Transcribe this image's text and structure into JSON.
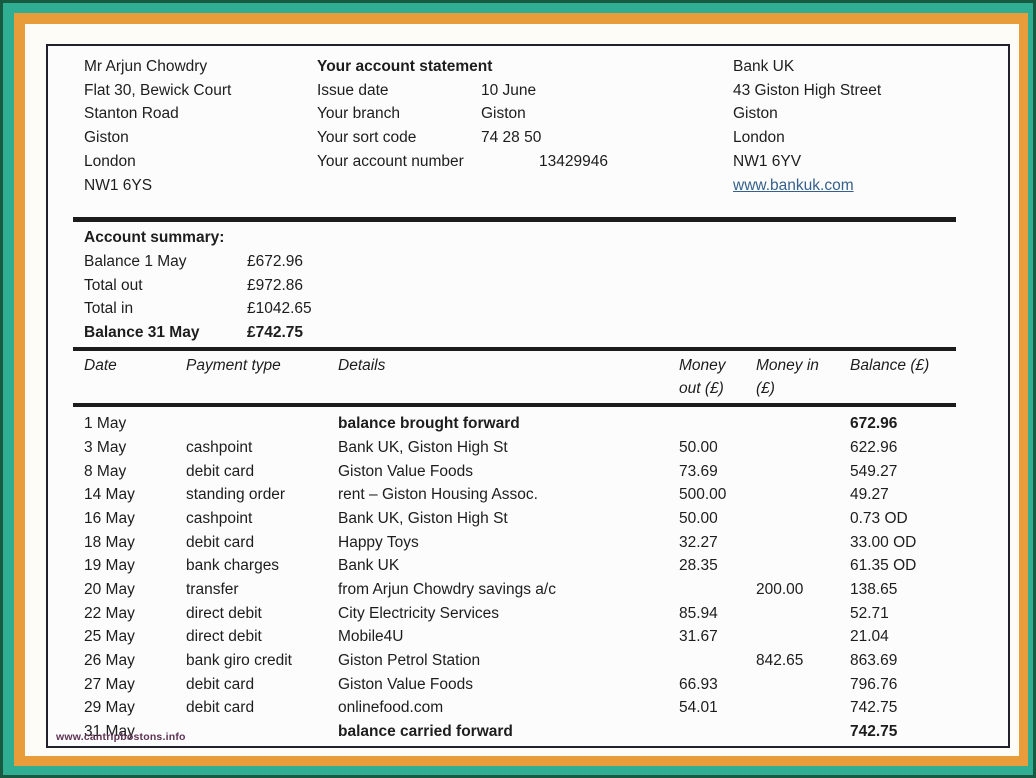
{
  "customer": {
    "lines": [
      "Mr Arjun Chowdry",
      "Flat 30, Bewick Court",
      "Stanton Road",
      "Giston",
      "London",
      "NW1 6YS"
    ]
  },
  "statement": {
    "title": "Your account statement",
    "fields": [
      {
        "label": "Issue date",
        "value": "10 June"
      },
      {
        "label": "Your branch",
        "value": "Giston"
      },
      {
        "label": "Your sort code",
        "value": "74 28 50"
      },
      {
        "label": "Your account number",
        "value": "13429946"
      }
    ]
  },
  "bank": {
    "lines": [
      "Bank UK",
      "43 Giston High Street",
      "Giston",
      "London",
      "NW1 6YV"
    ],
    "website": "www.bankuk.com"
  },
  "summary": {
    "title": "Account summary:",
    "rows": [
      {
        "label": "Balance 1 May",
        "value": "£672.96"
      },
      {
        "label": "Total out",
        "value": "£972.86"
      },
      {
        "label": "Total in",
        "value": "£1042.65"
      },
      {
        "label": "Balance 31 May",
        "value": "£742.75"
      }
    ]
  },
  "table": {
    "headers": [
      "Date",
      "Payment type",
      "Details",
      "Money\nout (£)",
      "Money in\n(£)",
      "Balance (£)"
    ],
    "transactions": [
      {
        "date": "1 May",
        "payment_type": "",
        "details": "balance brought forward",
        "money_out": "",
        "money_in": "",
        "balance": "672.96",
        "bold": true
      },
      {
        "date": "3 May",
        "payment_type": "cashpoint",
        "details": "Bank UK, Giston High St",
        "money_out": "50.00",
        "money_in": "",
        "balance": "622.96"
      },
      {
        "date": "8 May",
        "payment_type": "debit card",
        "details": "Giston Value Foods",
        "money_out": "73.69",
        "money_in": "",
        "balance": "549.27"
      },
      {
        "date": "14 May",
        "payment_type": "standing order",
        "details": "rent – Giston Housing Assoc.",
        "money_out": "500.00",
        "money_in": "",
        "balance": "49.27"
      },
      {
        "date": "16 May",
        "payment_type": "cashpoint",
        "details": "Bank UK, Giston High St",
        "money_out": "50.00",
        "money_in": "",
        "balance": "0.73 OD"
      },
      {
        "date": "18 May",
        "payment_type": "debit card",
        "details": "Happy Toys",
        "money_out": "32.27",
        "money_in": "",
        "balance": "33.00 OD"
      },
      {
        "date": "19 May",
        "payment_type": "bank charges",
        "details": "Bank UK",
        "money_out": "28.35",
        "money_in": "",
        "balance": "61.35 OD"
      },
      {
        "date": "20 May",
        "payment_type": "transfer",
        "details": "from Arjun Chowdry savings a/c",
        "money_out": "",
        "money_in": "200.00",
        "balance": "138.65"
      },
      {
        "date": "22 May",
        "payment_type": "direct debit",
        "details": "City Electricity Services",
        "money_out": "85.94",
        "money_in": "",
        "balance": "52.71"
      },
      {
        "date": "25 May",
        "payment_type": "direct debit",
        "details": "Mobile4U",
        "money_out": "31.67",
        "money_in": "",
        "balance": "21.04"
      },
      {
        "date": "26 May",
        "payment_type": "bank giro credit",
        "details": "Giston Petrol Station",
        "money_out": "",
        "money_in": "842.65",
        "balance": "863.69"
      },
      {
        "date": "27 May",
        "payment_type": "debit card",
        "details": "Giston Value Foods",
        "money_out": "66.93",
        "money_in": "",
        "balance": "796.76"
      },
      {
        "date": "29 May",
        "payment_type": "debit card",
        "details": "onlinefood.com",
        "money_out": "54.01",
        "money_in": "",
        "balance": "742.75"
      },
      {
        "date": "31 May",
        "payment_type": "",
        "details": "balance carried forward",
        "money_out": "",
        "money_in": "",
        "balance": "742.75",
        "bold": true
      }
    ]
  },
  "watermark": "www.cantripbostons.info",
  "colors": {
    "frame_outer": "#175a41",
    "frame_teal": "#2fae94",
    "frame_orange": "#e89c3a",
    "page_border": "#20202e",
    "link": "#36618e",
    "watermark": "#5f3354"
  }
}
